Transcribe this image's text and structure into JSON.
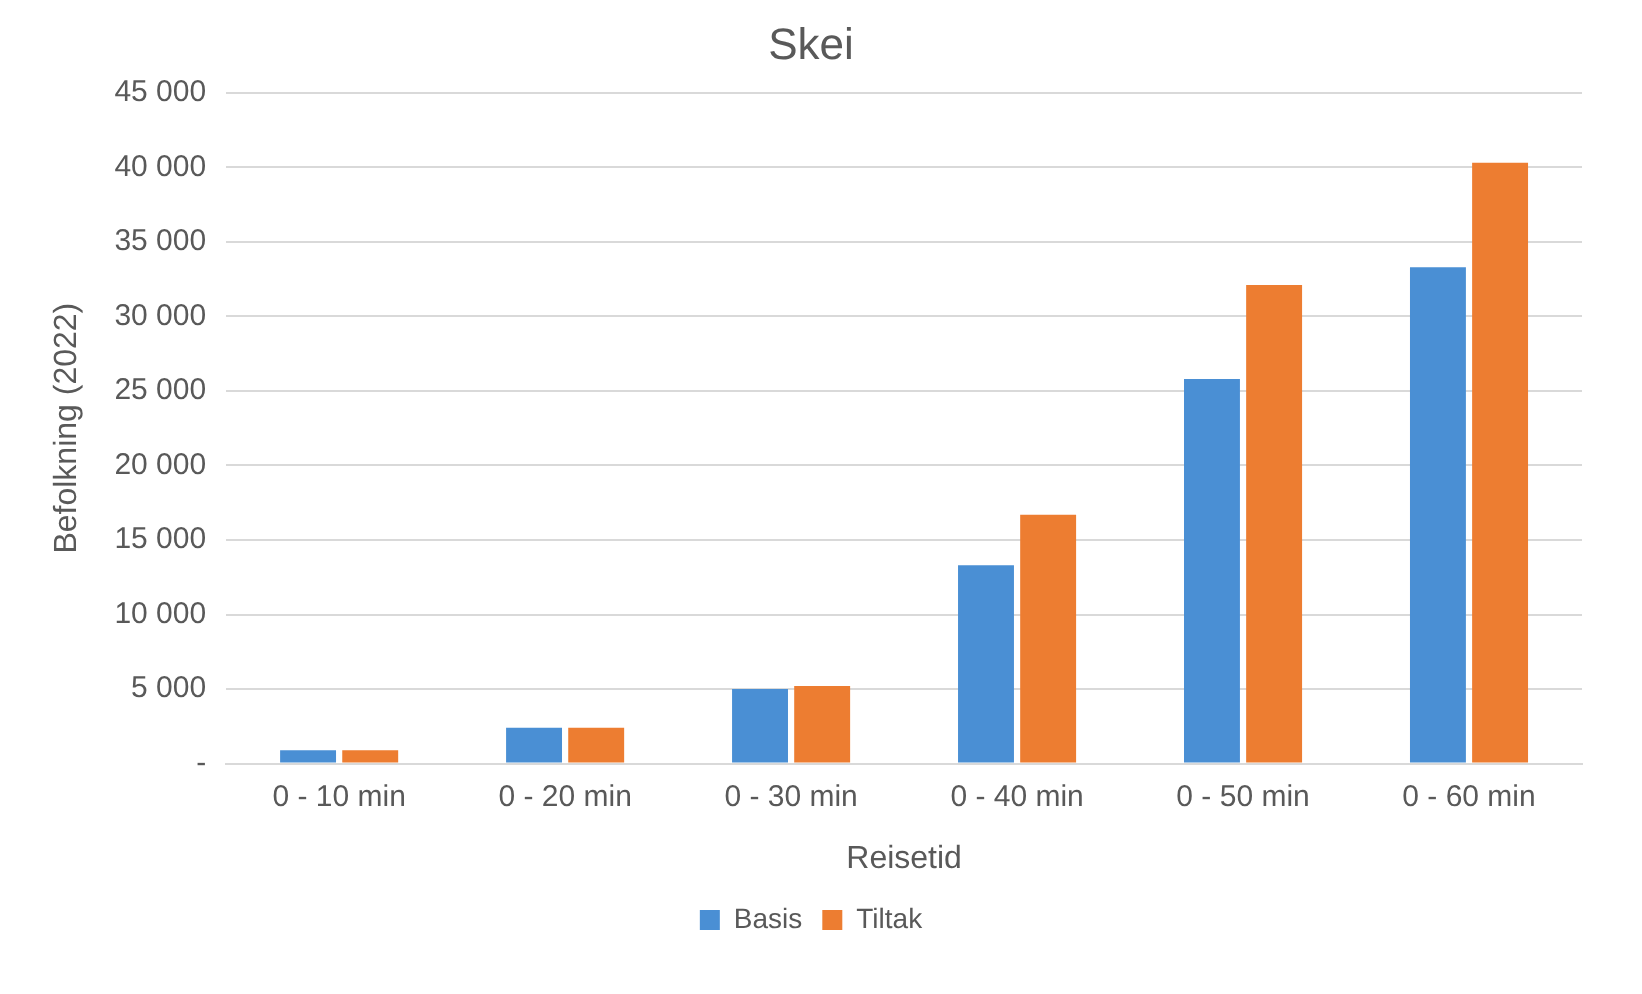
{
  "chart_data": {
    "type": "bar",
    "title": "Skei",
    "xlabel": "Reisetid",
    "ylabel": "Befolkning (2022)",
    "categories": [
      "0 - 10 min",
      "0 - 20 min",
      "0 - 30 min",
      "0 - 40 min",
      "0 - 50 min",
      "0 - 60 min"
    ],
    "series": [
      {
        "name": "Basis",
        "color": "#4a8fd4",
        "values": [
          900,
          2400,
          5000,
          13300,
          25800,
          33300
        ]
      },
      {
        "name": "Tiltak",
        "color": "#ed7d31",
        "values": [
          900,
          2400,
          5200,
          16700,
          32100,
          40300
        ]
      }
    ],
    "ylim": [
      0,
      45000
    ],
    "yticks": [
      {
        "value": 0,
        "label": "-"
      },
      {
        "value": 5000,
        "label": "5 000"
      },
      {
        "value": 10000,
        "label": "10 000"
      },
      {
        "value": 15000,
        "label": "15 000"
      },
      {
        "value": 20000,
        "label": "20 000"
      },
      {
        "value": 25000,
        "label": "25 000"
      },
      {
        "value": 30000,
        "label": "30 000"
      },
      {
        "value": 35000,
        "label": "35 000"
      },
      {
        "value": 40000,
        "label": "40 000"
      },
      {
        "value": 45000,
        "label": "45 000"
      }
    ],
    "grid": "y",
    "legend": "bottom"
  }
}
